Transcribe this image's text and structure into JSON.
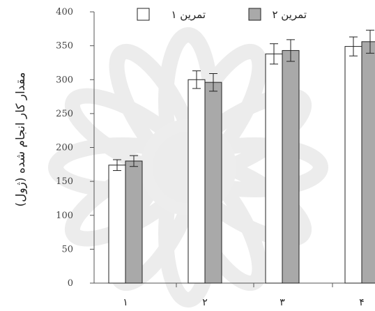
{
  "chart_data": {
    "type": "bar",
    "title": "",
    "xlabel": "",
    "ylabel": "مقدار کار انجام شده (ژول)",
    "ylim": [
      0,
      400
    ],
    "yticks": [
      "0",
      "50",
      "100",
      "150",
      "200",
      "250",
      "300",
      "350",
      "400"
    ],
    "categories": [
      "۱",
      "۲",
      "۳",
      "۴"
    ],
    "legend_position": "top",
    "grid": false,
    "series": [
      {
        "name": "تمرین ۱",
        "color": "#ffffff",
        "values": [
          174,
          300,
          338,
          349
        ],
        "errors": [
          8,
          13,
          15,
          14
        ]
      },
      {
        "name": "تمرین ۲",
        "color": "#a9a9a9",
        "values": [
          180,
          296,
          343,
          356
        ],
        "errors": [
          8,
          13,
          16,
          17
        ]
      }
    ]
  }
}
